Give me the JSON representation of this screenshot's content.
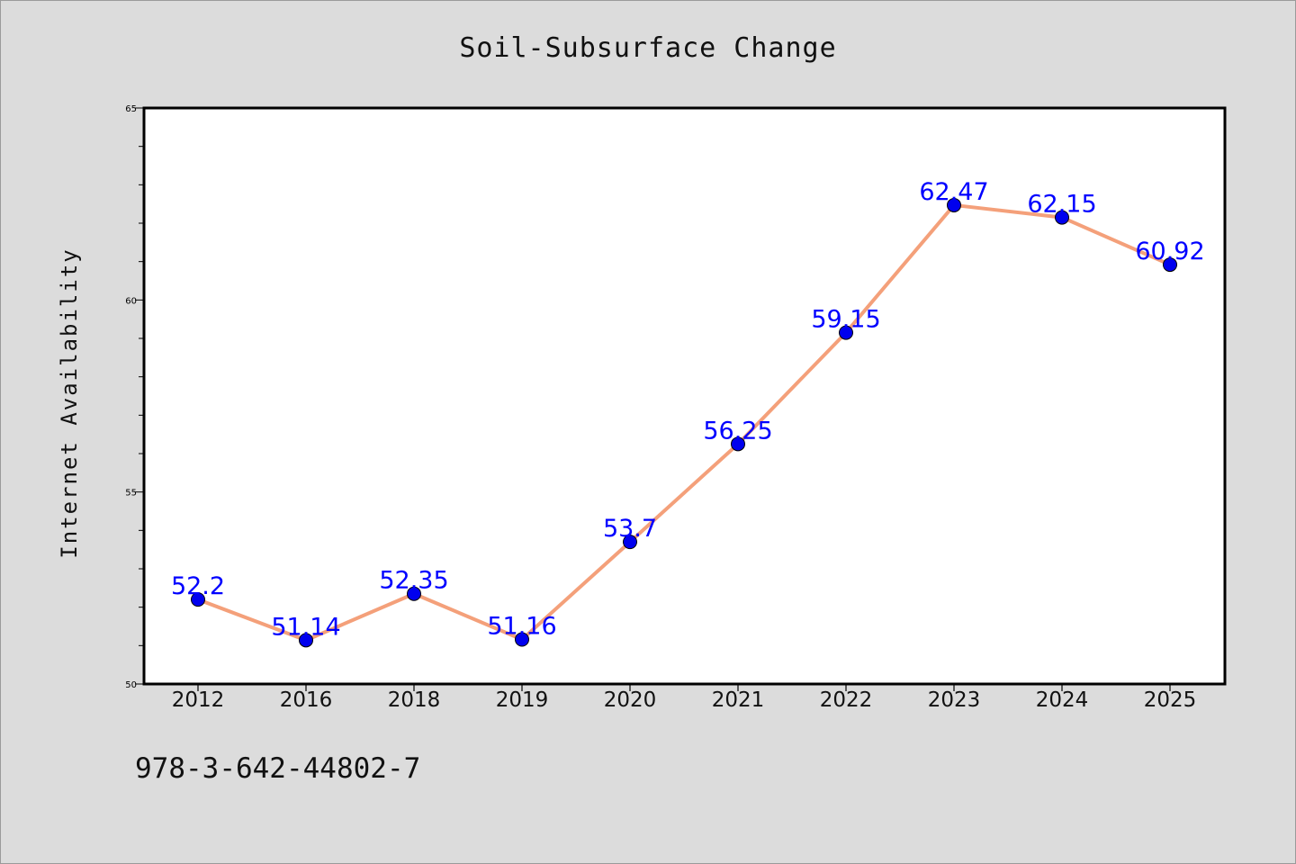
{
  "chart_data": {
    "type": "line",
    "title": "Soil-Subsurface Change",
    "ylabel": "Internet Availability",
    "xlabel": "",
    "categories": [
      "2012",
      "2016",
      "2018",
      "2019",
      "2020",
      "2021",
      "2022",
      "2023",
      "2024",
      "2025"
    ],
    "values": [
      52.2,
      51.14,
      52.35,
      51.16,
      53.7,
      56.25,
      59.15,
      62.47,
      62.15,
      60.92
    ],
    "value_labels": [
      "52.2",
      "51.14",
      "52.35",
      "51.16",
      "53.7",
      "56.25",
      "59.15",
      "62.47",
      "62.15",
      "60.92"
    ],
    "ylim": [
      50,
      65
    ],
    "y_ticks": [
      50,
      55,
      60,
      65
    ],
    "y_tick_labels": [
      "50",
      "55",
      "60",
      "65"
    ],
    "grid": false,
    "legend": "none",
    "colors": {
      "line": "#f4a07a",
      "marker": "#0000ee",
      "marker_edge": "#000000",
      "data_label": "#0000ff",
      "plot_background": "#ffffff",
      "page_background": "#dcdcdc"
    }
  },
  "footer": {
    "isbn": "978-3-642-44802-7"
  }
}
